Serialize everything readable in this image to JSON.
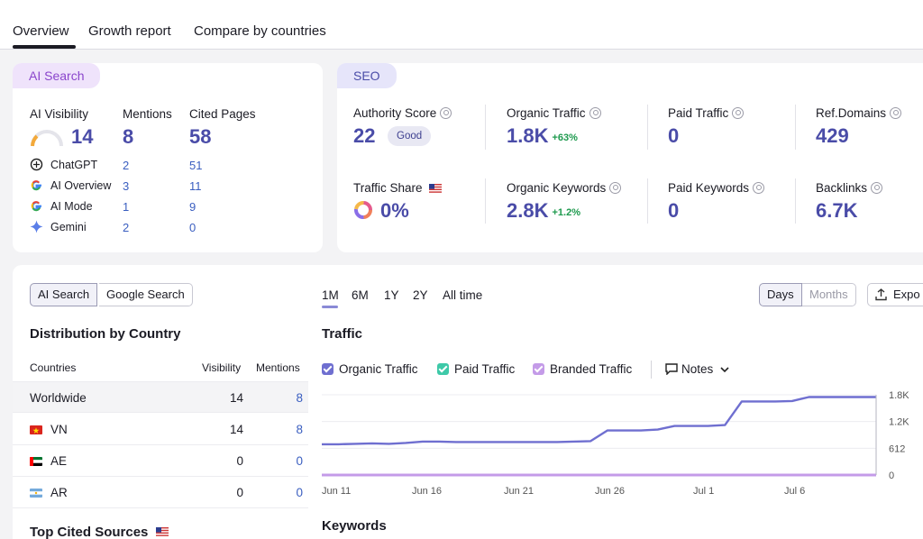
{
  "tabs": [
    "Overview",
    "Growth report",
    "Compare by countries"
  ],
  "ai_card": {
    "tag": "AI Search",
    "visibility_label": "AI Visibility",
    "visibility_value": "14",
    "mentions_label": "Mentions",
    "mentions_value": "8",
    "cited_label": "Cited Pages",
    "cited_value": "58",
    "sources": [
      {
        "name": "ChatGPT",
        "icon": "chatgpt-icon",
        "mentions": "2",
        "cited": "51"
      },
      {
        "name": "AI Overview",
        "icon": "google-icon",
        "mentions": "3",
        "cited": "11"
      },
      {
        "name": "AI Mode",
        "icon": "google-icon",
        "mentions": "1",
        "cited": "9"
      },
      {
        "name": "Gemini",
        "icon": "gemini-icon",
        "mentions": "2",
        "cited": "0"
      }
    ]
  },
  "seo_card": {
    "tag": "SEO",
    "authority_label": "Authority Score",
    "authority_value": "22",
    "authority_badge": "Good",
    "organic_traffic_label": "Organic Traffic",
    "organic_traffic_value": "1.8K",
    "organic_traffic_delta": "+63%",
    "paid_traffic_label": "Paid Traffic",
    "paid_traffic_value": "0",
    "ref_domains_label": "Ref.Domains",
    "ref_domains_value": "429",
    "traffic_share_label": "Traffic Share",
    "traffic_share_value": "0%",
    "organic_keywords_label": "Organic Keywords",
    "organic_keywords_value": "2.8K",
    "organic_keywords_delta": "+1.2%",
    "paid_keywords_label": "Paid Keywords",
    "paid_keywords_value": "0",
    "backlinks_label": "Backlinks",
    "backlinks_value": "6.7K"
  },
  "search_toggle": [
    "AI Search",
    "Google Search"
  ],
  "distribution": {
    "title": "Distribution by Country",
    "col_countries": "Countries",
    "col_visibility": "Visibility",
    "col_mentions": "Mentions",
    "rows": [
      {
        "country": "Worldwide",
        "visibility": "14",
        "mentions": "8"
      },
      {
        "country": "VN",
        "visibility": "14",
        "mentions": "8"
      },
      {
        "country": "AE",
        "visibility": "0",
        "mentions": "0"
      },
      {
        "country": "AR",
        "visibility": "0",
        "mentions": "0"
      }
    ],
    "top_cited_title": "Top Cited Sources"
  },
  "ranges": [
    "1M",
    "6M",
    "1Y",
    "2Y",
    "All time"
  ],
  "granularity": [
    "Days",
    "Months"
  ],
  "export_label": "Expo",
  "traffic_title": "Traffic",
  "legend": [
    "Organic Traffic",
    "Paid Traffic",
    "Branded Traffic"
  ],
  "notes_label": "Notes",
  "keywords_title": "Keywords",
  "colors": {
    "organic": "#6f6fd0",
    "paid": "#3ec9a8",
    "branded": "#c49be8",
    "accent": "#4a4ca8"
  },
  "chart_data": {
    "type": "line",
    "x_tick_labels": [
      "Jun 11",
      "Jun 16",
      "Jun 21",
      "Jun 26",
      "Jul 1",
      "Jul 6"
    ],
    "y_tick_labels": [
      "1.8K",
      "1.2K",
      "612",
      "0"
    ],
    "ylim": [
      0,
      1800
    ],
    "series": [
      {
        "name": "Organic Traffic",
        "values": [
          690,
          690,
          700,
          710,
          700,
          720,
          750,
          750,
          740,
          740,
          740,
          740,
          740,
          740,
          740,
          750,
          760,
          1000,
          1000,
          1000,
          1020,
          1100,
          1100,
          1100,
          1120,
          1650,
          1650,
          1650,
          1660,
          1750,
          1750,
          1750,
          1750,
          1750
        ]
      },
      {
        "name": "Paid Traffic",
        "values": [
          0,
          0,
          0,
          0,
          0,
          0,
          0,
          0,
          0,
          0,
          0,
          0,
          0,
          0,
          0,
          0,
          0,
          0,
          0,
          0,
          0,
          0,
          0,
          0,
          0,
          0,
          0,
          0,
          0,
          0,
          0,
          0,
          0,
          0
        ]
      }
    ]
  }
}
